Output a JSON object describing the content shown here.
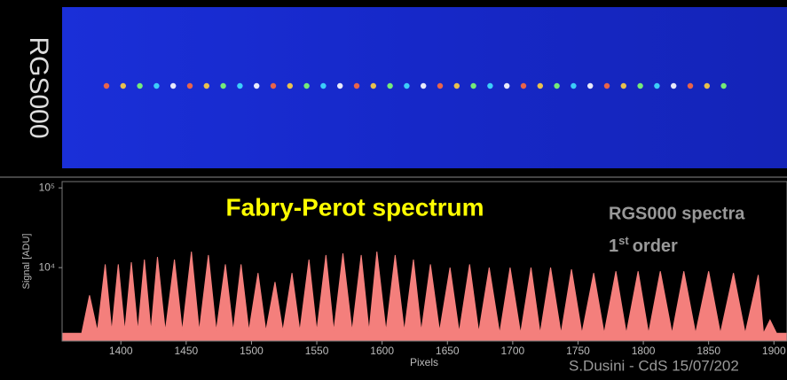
{
  "panel_label": "RGS000",
  "chart_data": {
    "type": "area",
    "title": "Fabry-Perot spectrum",
    "annotation": "RGS000 spectra",
    "order_label": {
      "number": "1",
      "suffix": "st",
      "text": "order"
    },
    "credit": "S.Dusini - CdS 15/07/202",
    "x_label": "Pixels",
    "y_label": "Signal [ADU]",
    "log_y": true,
    "color": "#f47f7c",
    "xlim": [
      1355,
      1910
    ],
    "ylim": [
      1200,
      120000
    ],
    "xticks": [
      1400,
      1450,
      1500,
      1550,
      1600,
      1650,
      1700,
      1750,
      1800,
      1850,
      1900
    ],
    "yticks": [
      {
        "value": 10000,
        "label": "10⁴"
      },
      {
        "value": 100000,
        "label": "10⁵"
      }
    ],
    "x": [
      1355,
      1370,
      1376,
      1382,
      1388,
      1393,
      1398,
      1403,
      1408,
      1413,
      1418,
      1423,
      1428,
      1434,
      1441,
      1447,
      1454,
      1460,
      1467,
      1473,
      1480,
      1486,
      1492,
      1498,
      1505,
      1511,
      1518,
      1524,
      1531,
      1537,
      1544,
      1550,
      1557,
      1563,
      1570,
      1577,
      1584,
      1590,
      1596,
      1603,
      1610,
      1617,
      1624,
      1630,
      1637,
      1644,
      1652,
      1659,
      1667,
      1674,
      1682,
      1690,
      1698,
      1706,
      1714,
      1721,
      1729,
      1737,
      1745,
      1753,
      1762,
      1770,
      1779,
      1787,
      1796,
      1804,
      1813,
      1822,
      1831,
      1840,
      1850,
      1859,
      1869,
      1878,
      1888,
      1892,
      1897,
      1902,
      1910
    ],
    "values": [
      1500,
      1500,
      4500,
      1600,
      11000,
      1600,
      11000,
      1600,
      11700,
      1600,
      12600,
      1600,
      13600,
      1600,
      12600,
      1600,
      15900,
      1600,
      14400,
      1600,
      11000,
      1600,
      11000,
      1600,
      8560,
      1600,
      6600,
      1600,
      8560,
      1600,
      12600,
      1600,
      14400,
      1600,
      15100,
      1600,
      14400,
      1600,
      15900,
      1600,
      14400,
      1600,
      12600,
      1600,
      11000,
      1600,
      10000,
      1550,
      11000,
      1550,
      10000,
      1500,
      10000,
      1500,
      10000,
      1500,
      10000,
      1500,
      9500,
      1500,
      8560,
      1500,
      9000,
      1500,
      9000,
      1500,
      9000,
      1500,
      9000,
      1500,
      9000,
      1500,
      8560,
      1500,
      8100,
      1500,
      2200,
      1500,
      1500
    ]
  }
}
